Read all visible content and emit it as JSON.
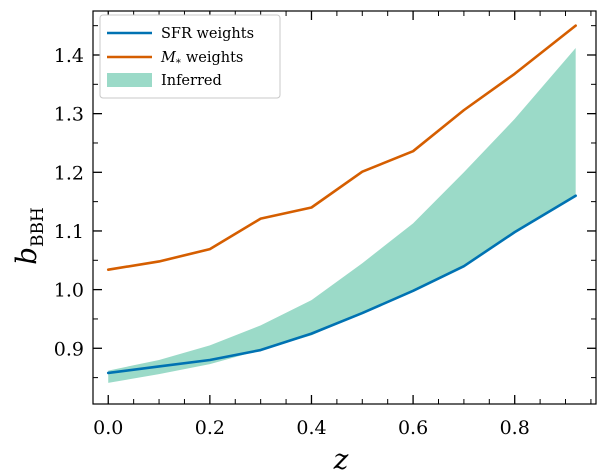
{
  "chart_data": {
    "type": "line",
    "xlabel": "z",
    "ylabel_main": "b",
    "ylabel_sub": "BBH",
    "xlim": [
      -0.03,
      0.96
    ],
    "ylim": [
      0.805,
      1.475
    ],
    "xticks": [
      0.0,
      0.2,
      0.4,
      0.6,
      0.8
    ],
    "xtick_labels": [
      "0.0",
      "0.2",
      "0.4",
      "0.6",
      "0.8"
    ],
    "yticks": [
      0.9,
      1.0,
      1.1,
      1.2,
      1.3,
      1.4
    ],
    "ytick_labels": [
      "0.9",
      "1.0",
      "1.1",
      "1.2",
      "1.3",
      "1.4"
    ],
    "x": [
      0.0,
      0.1,
      0.2,
      0.3,
      0.4,
      0.5,
      0.6,
      0.7,
      0.8,
      0.92
    ],
    "series": [
      {
        "name": "SFR weights",
        "color": "#0072b2",
        "values": [
          0.858,
          0.869,
          0.88,
          0.897,
          0.925,
          0.96,
          0.998,
          1.04,
          1.098,
          1.16
        ]
      },
      {
        "name": "M* weights",
        "color": "#d55e00",
        "values": [
          1.034,
          1.048,
          1.069,
          1.121,
          1.14,
          1.201,
          1.236,
          1.306,
          1.368,
          1.45
        ]
      }
    ],
    "band": {
      "name": "Inferred",
      "color": "#9bdac8",
      "lower": [
        0.841,
        0.856,
        0.873,
        0.897,
        0.922,
        0.96,
        0.998,
        1.04,
        1.098,
        1.16
      ],
      "upper": [
        0.862,
        0.88,
        0.905,
        0.939,
        0.982,
        1.045,
        1.113,
        1.2,
        1.291,
        1.412
      ]
    },
    "legend": {
      "position": "top-left",
      "entries": [
        "SFR weights",
        "weights",
        "Inferred"
      ],
      "mstar_symbol": "M",
      "mstar_sub": "*"
    },
    "grid": false
  }
}
